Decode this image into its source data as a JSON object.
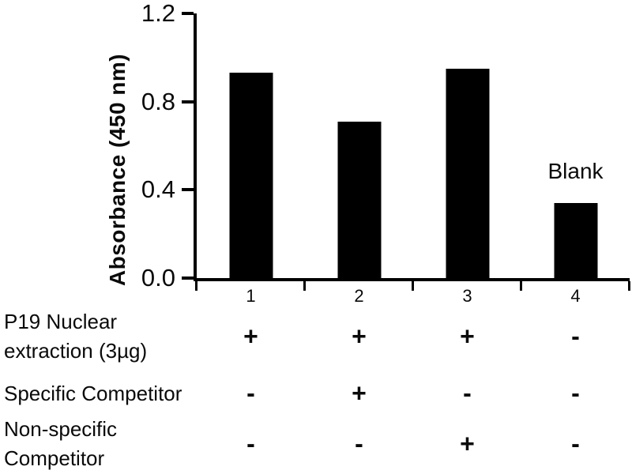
{
  "figure": {
    "background": "#ffffff",
    "foreground": "#000000"
  },
  "chart_data": {
    "type": "bar",
    "title": "",
    "xlabel": "",
    "ylabel": "Absorbance (450 nm)",
    "ylim": [
      0,
      1.2
    ],
    "ytick_values": [
      0,
      0.4,
      0.8,
      1.2
    ],
    "ytick_labels": [
      "0.0",
      "0.4",
      "0.8",
      "1.2"
    ],
    "categories": [
      "1",
      "2",
      "3",
      "4"
    ],
    "values": [
      0.93,
      0.71,
      0.95,
      0.34
    ],
    "bar_color": "#000000",
    "grid": false,
    "legend": "none",
    "annotations": [
      {
        "text": "Blank",
        "category_index": 3
      }
    ]
  },
  "condition_table": {
    "rows": [
      {
        "label_lines": [
          "P19 Nuclear",
          "extraction (3µg)"
        ],
        "values": [
          "+",
          "+",
          "+",
          "-"
        ]
      },
      {
        "label_lines": [
          "Specific Competitor"
        ],
        "values": [
          "-",
          "+",
          "-",
          "-"
        ]
      },
      {
        "label_lines": [
          "Non-specific",
          "Competitor"
        ],
        "values": [
          "-",
          "-",
          "+",
          "-"
        ]
      }
    ]
  }
}
